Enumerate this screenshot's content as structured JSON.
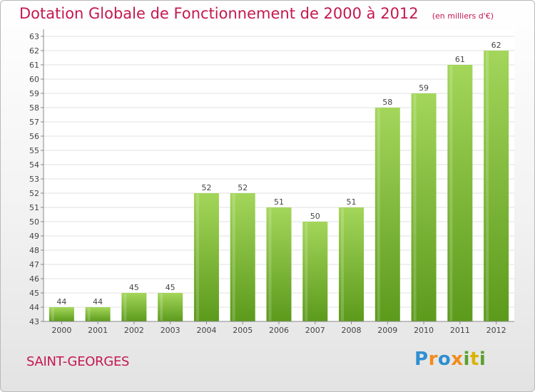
{
  "header": {
    "title": "Dotation Globale de Fonctionnement de 2000 à 2012",
    "subtitle": "(en milliers d'€)"
  },
  "footer": {
    "town": "SAINT-GEORGES",
    "logo": {
      "text": "Proxiti",
      "letters": [
        "P",
        "r",
        "o",
        "x",
        "i",
        "t",
        "i"
      ],
      "colors": [
        "#2f8fd0",
        "#f28c1b",
        "#2f8fd0",
        "#f28c1b",
        "#5aa02c",
        "#d9b300",
        "#5aa02c"
      ]
    }
  },
  "chart_data": {
    "type": "bar",
    "categories": [
      "2000",
      "2001",
      "2002",
      "2003",
      "2004",
      "2005",
      "2006",
      "2007",
      "2008",
      "2009",
      "2010",
      "2011",
      "2012"
    ],
    "values": [
      44,
      44,
      45,
      45,
      52,
      52,
      51,
      50,
      51,
      58,
      59,
      61,
      62
    ],
    "ylim": [
      43,
      63
    ],
    "yticks": [
      43,
      44,
      45,
      46,
      47,
      48,
      49,
      50,
      51,
      52,
      53,
      54,
      55,
      56,
      57,
      58,
      59,
      60,
      61,
      62,
      63
    ],
    "grid": true,
    "bar_color": "#7cbf2f",
    "bar_color_light": "#a3d65a",
    "bar_color_dark": "#5c9a1c"
  }
}
